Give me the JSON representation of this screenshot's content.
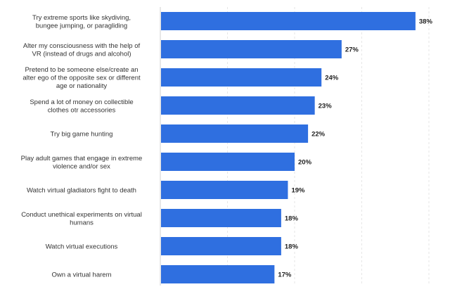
{
  "chart_data": {
    "type": "bar",
    "orientation": "horizontal",
    "categories": [
      [
        "Try extreme sports like skydiving,",
        "bungee jumping, or paragliding"
      ],
      [
        "Alter my consciousness with the help of",
        "VR (instead of drugs and alcohol)"
      ],
      [
        "Pretend to be someone else/create an",
        "alter ego of the opposite sex or different",
        "age or nationality"
      ],
      [
        "Spend a lot of money on collectible",
        "clothes otr accessories"
      ],
      [
        "Try big game hunting"
      ],
      [
        "Play adult games that engage in extreme",
        "violence and/or sex"
      ],
      [
        "Watch virtual gladiators fight to death"
      ],
      [
        "Conduct unethical experiments on virtual",
        "humans"
      ],
      [
        "Watch virtual executions"
      ],
      [
        "Own a virtual harem"
      ]
    ],
    "values": [
      38,
      27,
      24,
      23,
      22,
      20,
      19,
      18,
      18,
      17
    ],
    "value_labels": [
      "38%",
      "27%",
      "24%",
      "23%",
      "22%",
      "20%",
      "19%",
      "18%",
      "18%",
      "17%"
    ],
    "unit": "%",
    "xlim": [
      0,
      40
    ],
    "grid": true,
    "bar_color": "#2f6fe0",
    "title": "",
    "xlabel": "",
    "ylabel": ""
  }
}
